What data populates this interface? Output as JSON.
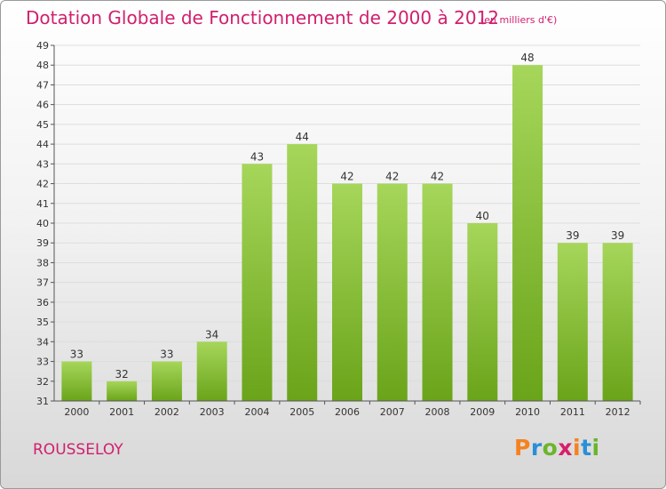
{
  "title": "Dotation Globale de Fonctionnement de 2000 à 2012",
  "subtitle": "(en milliers d'€)",
  "commune": "ROUSSELOY",
  "logo": {
    "text": "Proxiti",
    "letter_colors": [
      "#f58220",
      "#2a8fd6",
      "#6bb52a",
      "#d81e6a",
      "#f58220",
      "#2a8fd6",
      "#6bb52a"
    ]
  },
  "colors": {
    "title": "#d0206e",
    "bar_light": "#a6d65a",
    "bar_dark": "#6aa41a",
    "axis": "#555555",
    "grid": "#dddddd"
  },
  "chart_data": {
    "type": "bar",
    "title": "Dotation Globale de Fonctionnement de 2000 à 2012",
    "subtitle": "(en milliers d'€)",
    "categories": [
      "2000",
      "2001",
      "2002",
      "2003",
      "2004",
      "2005",
      "2006",
      "2007",
      "2008",
      "2009",
      "2010",
      "2011",
      "2012"
    ],
    "values": [
      33,
      32,
      33,
      34,
      43,
      44,
      42,
      42,
      42,
      40,
      48,
      39,
      39
    ],
    "ylim": [
      31,
      49
    ],
    "yticks": [
      31,
      32,
      33,
      34,
      35,
      36,
      37,
      38,
      39,
      40,
      41,
      42,
      43,
      44,
      45,
      46,
      47,
      48,
      49
    ],
    "grid": true,
    "xlabel": "",
    "ylabel": ""
  }
}
